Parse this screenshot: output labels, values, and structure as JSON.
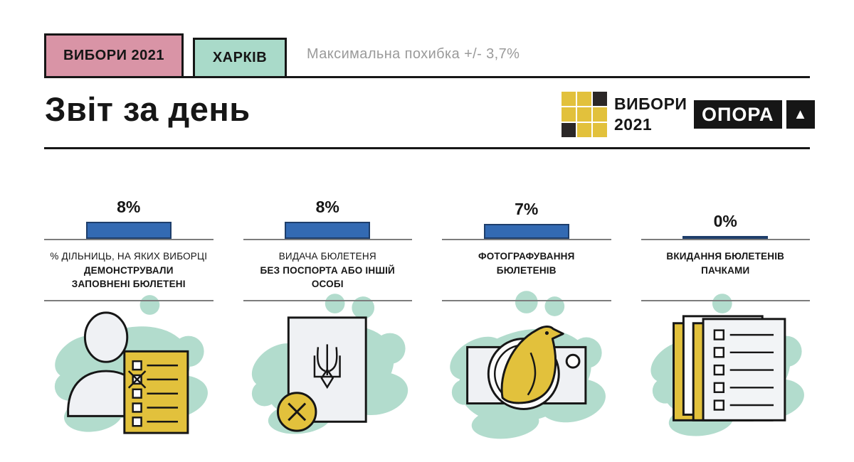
{
  "header": {
    "tag_election": "ВИБОРИ 2021",
    "tag_city": "ХАРКІВ",
    "error_note": "Максимальна похибка +/- 3,7%"
  },
  "title": "Звіт за день",
  "logos": {
    "vybory": {
      "grid": [
        "gold",
        "gold",
        "dark",
        "gold",
        "gold",
        "gold",
        "dark",
        "gold",
        "gold"
      ],
      "line1": "ВИБОРИ",
      "line2": "2021"
    },
    "opora": {
      "label": "ОПОРА",
      "triangle": "▲"
    }
  },
  "stats": [
    {
      "value_label": "8%",
      "value_pct": 8,
      "sublabel": "% ДІЛЬНИЦЬ, НА ЯКИХ ВИБОРЦІ",
      "label": "ДЕМОНСТРУВАЛИ\nЗАПОВНЕНІ БЮЛЕТЕНІ",
      "icon": "voter-showing-ballot-icon"
    },
    {
      "value_label": "8%",
      "value_pct": 8,
      "sublabel": "ВИДАЧА БЮЛЕТЕНЯ",
      "label": "БЕЗ ПОСПОРТА АБО ІНШІЙ\nОСОБІ",
      "icon": "ballot-without-passport-icon"
    },
    {
      "value_label": "7%",
      "value_pct": 7,
      "sublabel": "",
      "label": "ФОТОГРАФУВАННЯ\nБЮЛЕТЕНІВ",
      "icon": "camera-bird-icon"
    },
    {
      "value_label": "0%",
      "value_pct": 0,
      "sublabel": "",
      "label": "ВКИДАННЯ БЮЛЕТЕНІВ\nПАЧКАМИ",
      "icon": "ballot-stack-icon"
    }
  ],
  "palette": {
    "pink_tag": "#D994A6",
    "mint_tag": "#A9DAC9",
    "mint_blob": "#B2DCCD",
    "gold": "#E2C13C",
    "bar_blue": "#336AB3",
    "bar_border_navy": "#1E3E6B",
    "gray_line": "#7D7D7D",
    "gray_text": "#9A9A9A",
    "ink": "#161616",
    "paper": "#EFF1F4"
  },
  "chart_data": {
    "type": "bar",
    "title": "Звіт за день",
    "subtitle": "Максимальна похибка +/- 3,7%",
    "region": "ХАРКІВ",
    "campaign": "ВИБОРИ 2021",
    "categories": [
      "% дільниць, на яких виборці демонстрували заповнені бюлетені",
      "Видача бюлетеня без поспорта або іншій особі",
      "Фотографування бюлетенів",
      "Вкидання бюлетенів пачками"
    ],
    "values": [
      8,
      8,
      7,
      0
    ],
    "unit": "%",
    "ylim": [
      0,
      10
    ],
    "grid": false,
    "legend": false
  }
}
